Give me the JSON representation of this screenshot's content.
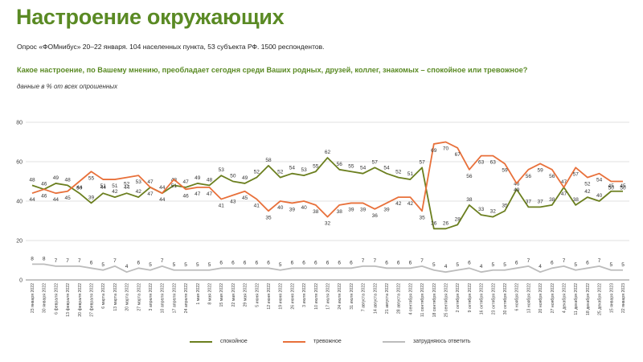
{
  "header": {
    "title": "Настроение окружающих",
    "subtitle": "Опрос «ФОМнибус» 20–22 января. 104 населенных пункта, 53 субъекта РФ. 1500 респондентов.",
    "question": "Какое настроение, по Вашему мнению, преобладает сегодня среди Ваших родных, друзей, коллег, знакомых – спокойное или тревожное?",
    "note": "данные в % от всех опрошенных"
  },
  "colors": {
    "calm": "#6b7f1f",
    "anxious": "#e8703a",
    "na": "#bcbcbc",
    "grid": "#d6d6d6",
    "axis_text": "#444444",
    "label_text": "#333333"
  },
  "chart_data": {
    "type": "line",
    "ylim": [
      0,
      80
    ],
    "yticks": [
      0,
      20,
      40,
      60,
      80
    ],
    "grid": true,
    "legend_position": "bottom",
    "categories": [
      "23 января 2022",
      "30 января 2022",
      "6 февраля 2022",
      "13 февраля 2022",
      "20 февраля 2022",
      "27 февраля 2022",
      "6 марта 2022",
      "13 марта 2022",
      "20 марта 2022",
      "27 марта 2022",
      "3 апреля 2022",
      "10 апреля 2022",
      "17 апреля 2022",
      "24 апреля 2022",
      "1 мая 2022",
      "8 мая 2022",
      "15 мая 2022",
      "22 мая 2022",
      "29 мая 2022",
      "5 июня 2022",
      "12 июня 2022",
      "19 июня 2022",
      "26 июня 2022",
      "3 июля 2022",
      "10 июля 2022",
      "17 июля 2022",
      "24 июля 2022",
      "31 июля 2022",
      "7 августа 2022",
      "14 августа 2022",
      "21 августа 2022",
      "28 августа 2022",
      "4 сентября 2022",
      "11 сентября 2022",
      "18 сентября 2022",
      "25 сентября 2022",
      "2 октября 2022",
      "9 октября 2022",
      "16 октября 2022",
      "23 октября 2022",
      "30 октября 2022",
      "6 ноября 2022",
      "13 ноября 2022",
      "20 ноября 2022",
      "27 ноября 2022",
      "4 декабря 2022",
      "11 декабря 2022",
      "18 декабря 2022",
      "25 декабря 2022",
      "15 января 2023",
      "22 января 2023"
    ],
    "series": [
      {
        "name": "спокойное",
        "color_key": "calm",
        "label_pos": "above",
        "values": [
          48,
          46,
          49,
          48,
          44,
          39,
          44,
          42,
          44,
          42,
          47,
          44,
          48,
          47,
          49,
          48,
          53,
          50,
          49,
          52,
          58,
          52,
          54,
          53,
          55,
          62,
          56,
          55,
          54,
          57,
          54,
          52,
          51,
          57,
          26,
          26,
          28,
          38,
          33,
          32,
          35,
          46,
          37,
          37,
          38,
          47,
          38,
          42,
          40,
          45,
          45
        ]
      },
      {
        "name": "тревожное",
        "color_key": "anxious",
        "label_pos": "below",
        "values": [
          44,
          46,
          44,
          45,
          50,
          55,
          51,
          51,
          52,
          53,
          47,
          44,
          51,
          46,
          47,
          47,
          41,
          43,
          45,
          41,
          35,
          40,
          39,
          40,
          38,
          32,
          38,
          39,
          39,
          36,
          39,
          42,
          42,
          35,
          69,
          70,
          67,
          56,
          63,
          63,
          59,
          49,
          56,
          59,
          56,
          47,
          57,
          52,
          54,
          50,
          50
        ]
      },
      {
        "name": "затрудняюсь ответить",
        "color_key": "na",
        "label_pos": "above",
        "values": [
          8,
          8,
          7,
          7,
          7,
          6,
          5,
          7,
          4,
          6,
          5,
          7,
          5,
          5,
          5,
          5,
          6,
          6,
          6,
          6,
          6,
          5,
          6,
          6,
          6,
          6,
          6,
          6,
          7,
          7,
          6,
          6,
          6,
          7,
          5,
          4,
          5,
          6,
          4,
          5,
          5,
          6,
          7,
          4,
          6,
          7,
          5,
          6,
          7,
          5,
          5
        ]
      }
    ]
  },
  "legend": [
    {
      "label": "спокойное",
      "color_key": "calm"
    },
    {
      "label": "тревожное",
      "color_key": "anxious"
    },
    {
      "label": "затрудняюсь ответить",
      "color_key": "na"
    }
  ]
}
